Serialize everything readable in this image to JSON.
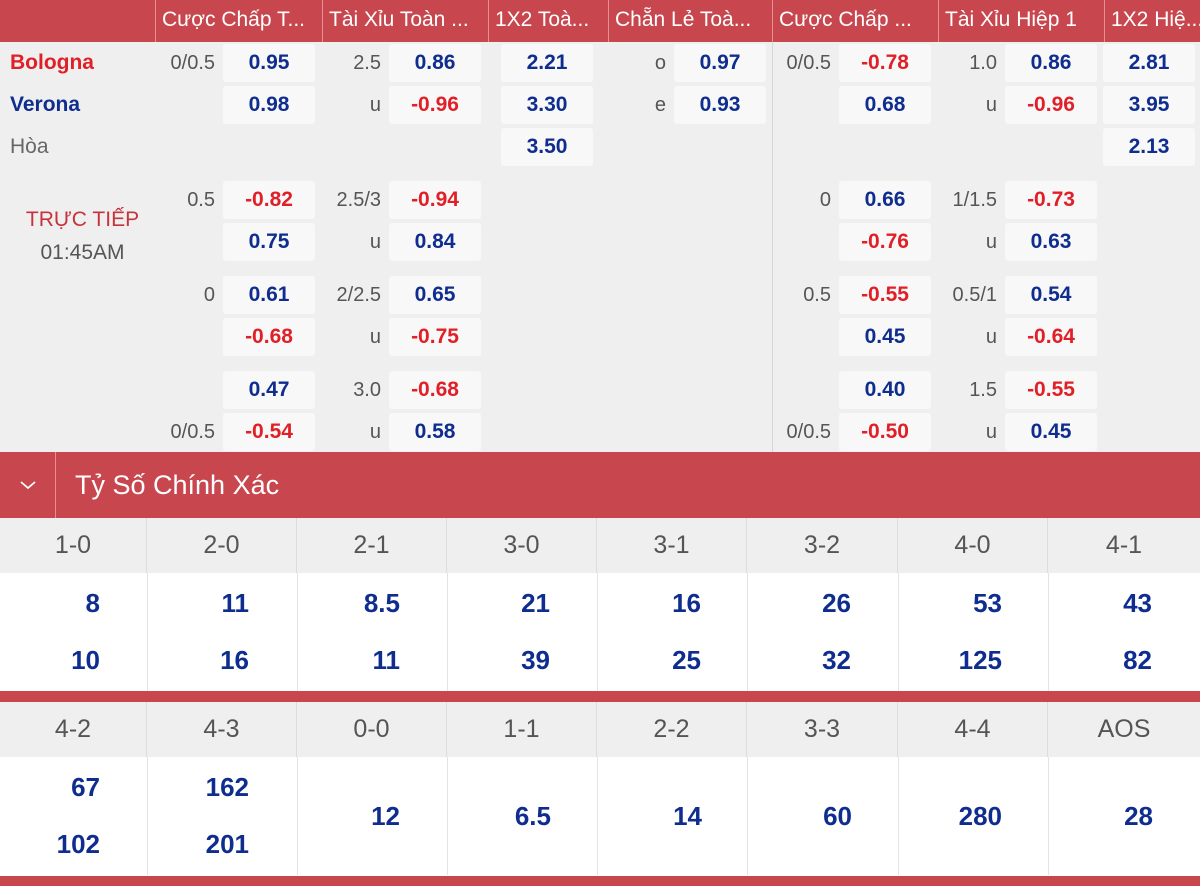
{
  "header": {
    "cols": [
      "Cược Chấp T...",
      "Tài Xỉu Toàn ...",
      "1X2 Toà...",
      "Chẵn Lẻ Toà...",
      "Cược Chấp ...",
      "Tài Xỉu Hiệp 1",
      "1X2 Hiệ..."
    ]
  },
  "match": {
    "home": "Bologna",
    "away": "Verona",
    "draw": "Hòa",
    "status": "TRỰC TIẾP",
    "time": "01:45AM"
  },
  "colors": {
    "accent": "#c8474f",
    "positive": "#0e2d8f",
    "negative": "#e01f27"
  },
  "odds": {
    "ft_hdp": [
      {
        "line": "0/0.5",
        "home": "0.95",
        "away": "0.98"
      },
      {
        "line": "0.5",
        "home": "-0.82",
        "away": "0.75"
      },
      {
        "line": "0",
        "home": "0.61",
        "away": "-0.68"
      },
      {
        "line": "0/0.5",
        "home": "0.47",
        "away": "-0.54"
      }
    ],
    "ft_ou": [
      {
        "line": "2.5",
        "u": "u",
        "over": "0.86",
        "under": "-0.96"
      },
      {
        "line": "2.5/3",
        "u": "u",
        "over": "-0.94",
        "under": "0.84"
      },
      {
        "line": "2/2.5",
        "u": "u",
        "over": "0.65",
        "under": "-0.75"
      },
      {
        "line": "3.0",
        "u": "u",
        "over": "-0.68",
        "under": "0.58"
      }
    ],
    "ft_1x2": {
      "home": "2.21",
      "away": "3.30",
      "draw": "3.50"
    },
    "ft_oe": {
      "o_label": "o",
      "o": "0.97",
      "e_label": "e",
      "e": "0.93"
    },
    "h1_hdp": [
      {
        "line": "0/0.5",
        "home": "-0.78",
        "away": "0.68"
      },
      {
        "line": "0",
        "home": "0.66",
        "away": "-0.76"
      },
      {
        "line": "0.5",
        "home": "-0.55",
        "away": "0.45"
      },
      {
        "line": "0/0.5",
        "home": "0.40",
        "away": "-0.50"
      }
    ],
    "h1_ou": [
      {
        "line": "1.0",
        "u": "u",
        "over": "0.86",
        "under": "-0.96"
      },
      {
        "line": "1/1.5",
        "u": "u",
        "over": "-0.73",
        "under": "0.63"
      },
      {
        "line": "0.5/1",
        "u": "u",
        "over": "0.54",
        "under": "-0.64"
      },
      {
        "line": "1.5",
        "u": "u",
        "over": "-0.55",
        "under": "0.45"
      }
    ],
    "h1_1x2": {
      "home": "2.81",
      "away": "3.95",
      "draw": "2.13"
    }
  },
  "correct_score": {
    "title": "Tỷ Số Chính Xác",
    "row1": [
      {
        "score": "1-0",
        "v1": "8",
        "v2": "10"
      },
      {
        "score": "2-0",
        "v1": "11",
        "v2": "16"
      },
      {
        "score": "2-1",
        "v1": "8.5",
        "v2": "11"
      },
      {
        "score": "3-0",
        "v1": "21",
        "v2": "39"
      },
      {
        "score": "3-1",
        "v1": "16",
        "v2": "25"
      },
      {
        "score": "3-2",
        "v1": "26",
        "v2": "32"
      },
      {
        "score": "4-0",
        "v1": "53",
        "v2": "125"
      },
      {
        "score": "4-1",
        "v1": "43",
        "v2": "82"
      }
    ],
    "row2": [
      {
        "score": "4-2",
        "v1": "67",
        "v2": "102"
      },
      {
        "score": "4-3",
        "v1": "162",
        "v2": "201"
      },
      {
        "score": "0-0",
        "v": "12"
      },
      {
        "score": "1-1",
        "v": "6.5"
      },
      {
        "score": "2-2",
        "v": "14"
      },
      {
        "score": "3-3",
        "v": "60"
      },
      {
        "score": "4-4",
        "v": "280"
      },
      {
        "score": "AOS",
        "v": "28"
      }
    ]
  }
}
